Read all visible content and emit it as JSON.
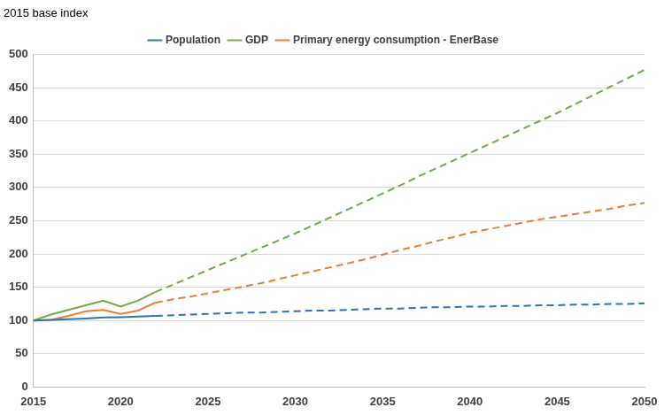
{
  "chart_data": {
    "type": "line",
    "y_label": "2015 base index",
    "x": [
      2015,
      2016,
      2017,
      2018,
      2019,
      2020,
      2021,
      2022,
      2023,
      2024,
      2025,
      2026,
      2027,
      2028,
      2029,
      2030,
      2031,
      2032,
      2033,
      2034,
      2035,
      2036,
      2037,
      2038,
      2039,
      2040,
      2041,
      2042,
      2043,
      2044,
      2045,
      2046,
      2047,
      2048,
      2049,
      2050
    ],
    "series": [
      {
        "name": "Population",
        "color": "#2e75b6",
        "line_style": "solid",
        "values": [
          100,
          101,
          102,
          103,
          104.5,
          105,
          106,
          107,
          null,
          null,
          null,
          null,
          null,
          null,
          null,
          null,
          null,
          null,
          null,
          null,
          null,
          null,
          null,
          null,
          null,
          null,
          null,
          null,
          null,
          null,
          null,
          null,
          null,
          null,
          null,
          null
        ]
      },
      {
        "name": "Population",
        "color": "#2e75b6",
        "line_style": "dashed",
        "values": [
          null,
          null,
          null,
          null,
          null,
          null,
          null,
          107,
          108,
          109,
          110,
          111,
          112,
          112,
          113,
          114,
          115,
          115,
          116,
          117,
          118,
          118,
          119,
          120,
          120,
          121,
          121,
          122,
          122,
          123,
          123,
          124,
          124,
          125,
          125,
          126
        ]
      },
      {
        "name": "GDP",
        "color": "#70ad47",
        "line_style": "solid",
        "values": [
          100,
          109,
          116,
          123,
          130,
          121,
          130,
          143,
          null,
          null,
          null,
          null,
          null,
          null,
          null,
          null,
          null,
          null,
          null,
          null,
          null,
          null,
          null,
          null,
          null,
          null,
          null,
          null,
          null,
          null,
          null,
          null,
          null,
          null,
          null,
          null
        ]
      },
      {
        "name": "GDP",
        "color": "#70ad47",
        "line_style": "dashed",
        "values": [
          null,
          null,
          null,
          null,
          null,
          null,
          null,
          143,
          154,
          165,
          176,
          187,
          198,
          209,
          220,
          231,
          243,
          255,
          267,
          279,
          291,
          303,
          316,
          328,
          340,
          352,
          364,
          376,
          388,
          400,
          412,
          425,
          438,
          451,
          464,
          477
        ]
      },
      {
        "name": "Primary energy consumption - EnerBase",
        "color": "#ed7d31",
        "line_style": "solid",
        "values": [
          100,
          101,
          107,
          114,
          116,
          110,
          115,
          127,
          null,
          null,
          null,
          null,
          null,
          null,
          null,
          null,
          null,
          null,
          null,
          null,
          null,
          null,
          null,
          null,
          null,
          null,
          null,
          null,
          null,
          null,
          null,
          null,
          null,
          null,
          null,
          null
        ]
      },
      {
        "name": "Primary energy consumption - EnerBase",
        "color": "#ed7d31",
        "line_style": "dashed",
        "values": [
          null,
          null,
          null,
          null,
          null,
          null,
          null,
          127,
          132,
          136,
          141,
          146,
          151,
          156,
          162,
          168,
          174,
          180,
          186,
          192,
          199,
          206,
          212,
          219,
          225,
          232,
          237,
          242,
          247,
          252,
          256,
          260,
          264,
          268,
          273,
          277
        ]
      }
    ],
    "xlim": [
      2015,
      2050
    ],
    "xticks": [
      2015,
      2020,
      2025,
      2030,
      2035,
      2040,
      2045,
      2050
    ],
    "ylim": [
      0,
      500
    ],
    "yticks": [
      0,
      50,
      100,
      150,
      200,
      250,
      300,
      350,
      400,
      450,
      500
    ],
    "grid": true,
    "legend": "top"
  }
}
